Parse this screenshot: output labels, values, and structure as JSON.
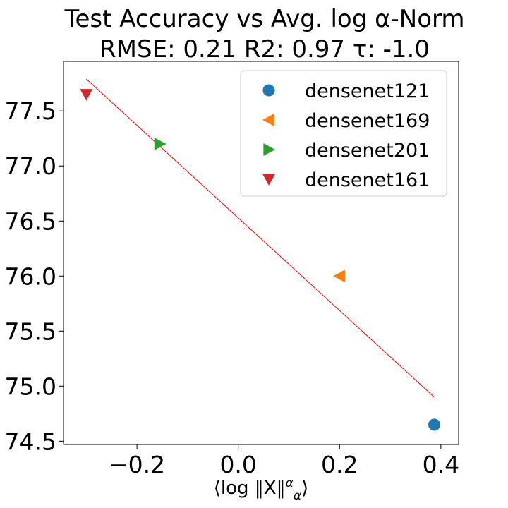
{
  "title_lines": [
    "Test Accuracy vs Avg. log α-Norm",
    "RMSE: 0.21 R2: 0.97 τ: -1.0"
  ],
  "chart_data": {
    "type": "scatter",
    "title": "Test Accuracy vs Avg. log α-Norm",
    "subtitle": "RMSE: 0.21 R2: 0.97 τ: -1.0",
    "xlabel": "⟨log ‖X‖",
    "xlabel_sup": "α",
    "xlabel_sub": "α",
    "xlabel_close": "⟩",
    "ylabel": "",
    "xlim": [
      -0.345,
      0.435
    ],
    "ylim": [
      74.47,
      77.95
    ],
    "x_ticks": [
      -0.2,
      0.0,
      0.2,
      0.4
    ],
    "x_tick_labels": [
      "−0.2",
      "0.0",
      "0.2",
      "0.4"
    ],
    "y_ticks": [
      74.5,
      75.0,
      75.5,
      76.0,
      76.5,
      77.0,
      77.5
    ],
    "y_tick_labels": [
      "74.5",
      "75.0",
      "75.5",
      "76.0",
      "76.5",
      "77.0",
      "77.5"
    ],
    "grid": false,
    "legend_position": "top-right",
    "series": [
      {
        "name": "densenet121",
        "marker": "circle",
        "color": "#1f77b4",
        "x": [
          0.387
        ],
        "y": [
          74.65
        ]
      },
      {
        "name": "densenet169",
        "marker": "triangle-left",
        "color": "#ff7f0e",
        "x": [
          0.2
        ],
        "y": [
          76.0
        ]
      },
      {
        "name": "densenet201",
        "marker": "triangle-right",
        "color": "#2ca02c",
        "x": [
          -0.155
        ],
        "y": [
          77.2
        ]
      },
      {
        "name": "densenet161",
        "marker": "triangle-down",
        "color": "#d62728",
        "x": [
          -0.3
        ],
        "y": [
          77.65
        ]
      }
    ],
    "fit_line": {
      "color": "#ff0000",
      "x": [
        -0.3,
        0.387
      ],
      "y": [
        77.79,
        74.9
      ]
    }
  }
}
